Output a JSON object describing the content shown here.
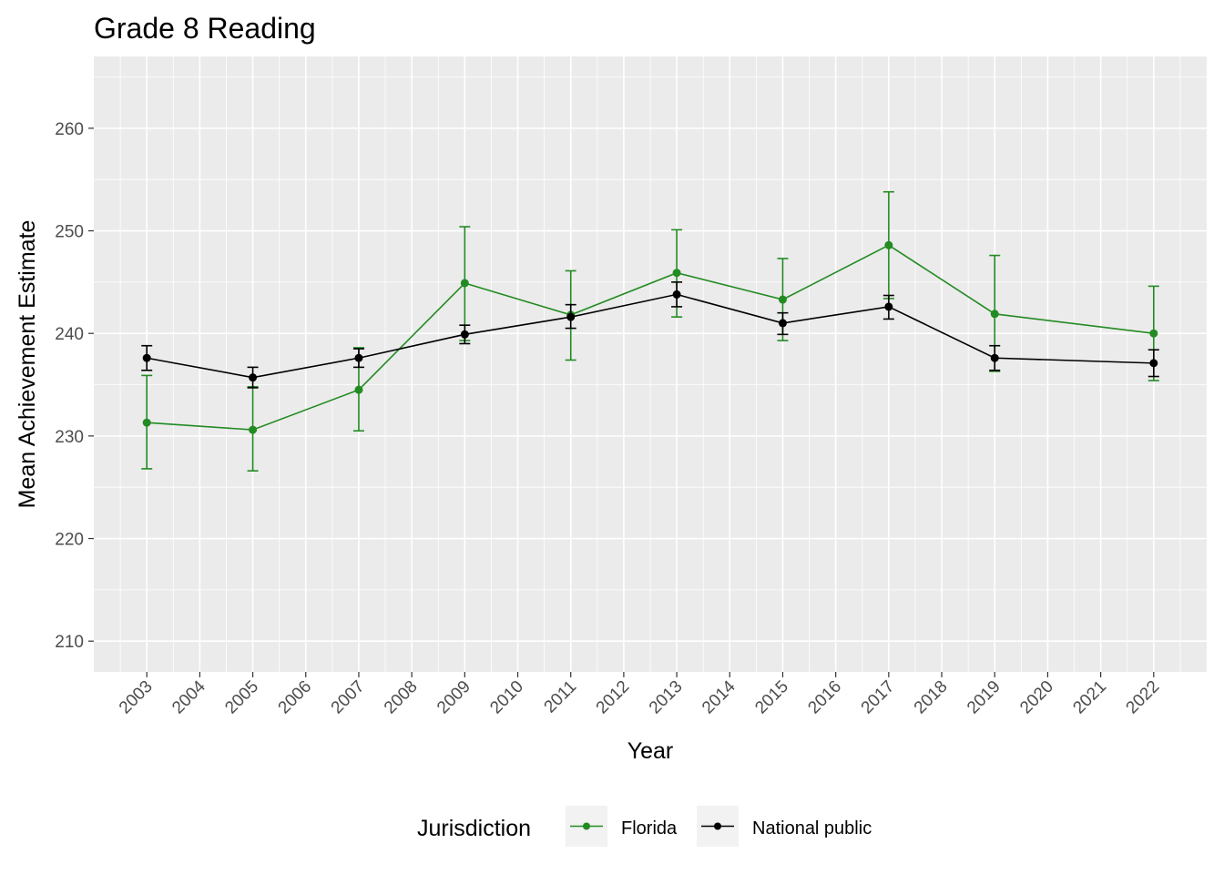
{
  "chart_data": {
    "type": "line",
    "title": "Grade 8 Reading",
    "xlabel": "Year",
    "ylabel": "Mean Achievement Estimate",
    "x_ticks": [
      "2003",
      "2004",
      "2005",
      "2006",
      "2007",
      "2008",
      "2009",
      "2010",
      "2011",
      "2012",
      "2013",
      "2014",
      "2015",
      "2016",
      "2017",
      "2018",
      "2019",
      "2020",
      "2021",
      "2022"
    ],
    "y_ticks": [
      210,
      220,
      230,
      240,
      250,
      260
    ],
    "ylim": [
      207,
      267
    ],
    "xlim": [
      2002.0,
      2023.0
    ],
    "grid": true,
    "legend": {
      "title": "Jurisdiction",
      "placement": "bottom"
    },
    "series": [
      {
        "name": "Florida",
        "color": "#228B22",
        "points": [
          {
            "x": 2003,
            "y": 231.3,
            "lo": 226.8,
            "hi": 235.9
          },
          {
            "x": 2005,
            "y": 230.6,
            "lo": 226.6,
            "hi": 234.8
          },
          {
            "x": 2007,
            "y": 234.5,
            "lo": 230.5,
            "hi": 238.6
          },
          {
            "x": 2009,
            "y": 244.9,
            "lo": 239.3,
            "hi": 250.4
          },
          {
            "x": 2011,
            "y": 241.8,
            "lo": 237.4,
            "hi": 246.1
          },
          {
            "x": 2013,
            "y": 245.9,
            "lo": 241.6,
            "hi": 250.1
          },
          {
            "x": 2015,
            "y": 243.3,
            "lo": 239.3,
            "hi": 247.3
          },
          {
            "x": 2017,
            "y": 248.6,
            "lo": 243.4,
            "hi": 253.8
          },
          {
            "x": 2019,
            "y": 241.9,
            "lo": 236.3,
            "hi": 247.6
          },
          {
            "x": 2022,
            "y": 240.0,
            "lo": 235.4,
            "hi": 244.6
          }
        ]
      },
      {
        "name": "National public",
        "color": "#000000",
        "points": [
          {
            "x": 2003,
            "y": 237.6,
            "lo": 236.4,
            "hi": 238.8
          },
          {
            "x": 2005,
            "y": 235.7,
            "lo": 234.7,
            "hi": 236.7
          },
          {
            "x": 2007,
            "y": 237.6,
            "lo": 236.7,
            "hi": 238.5
          },
          {
            "x": 2009,
            "y": 239.9,
            "lo": 239.0,
            "hi": 240.8
          },
          {
            "x": 2011,
            "y": 241.6,
            "lo": 240.5,
            "hi": 242.8
          },
          {
            "x": 2013,
            "y": 243.8,
            "lo": 242.6,
            "hi": 245.0
          },
          {
            "x": 2015,
            "y": 241.0,
            "lo": 239.9,
            "hi": 242.0
          },
          {
            "x": 2017,
            "y": 242.6,
            "lo": 241.4,
            "hi": 243.7
          },
          {
            "x": 2019,
            "y": 237.6,
            "lo": 236.4,
            "hi": 238.8
          },
          {
            "x": 2022,
            "y": 237.1,
            "lo": 235.8,
            "hi": 238.4
          }
        ]
      }
    ]
  }
}
